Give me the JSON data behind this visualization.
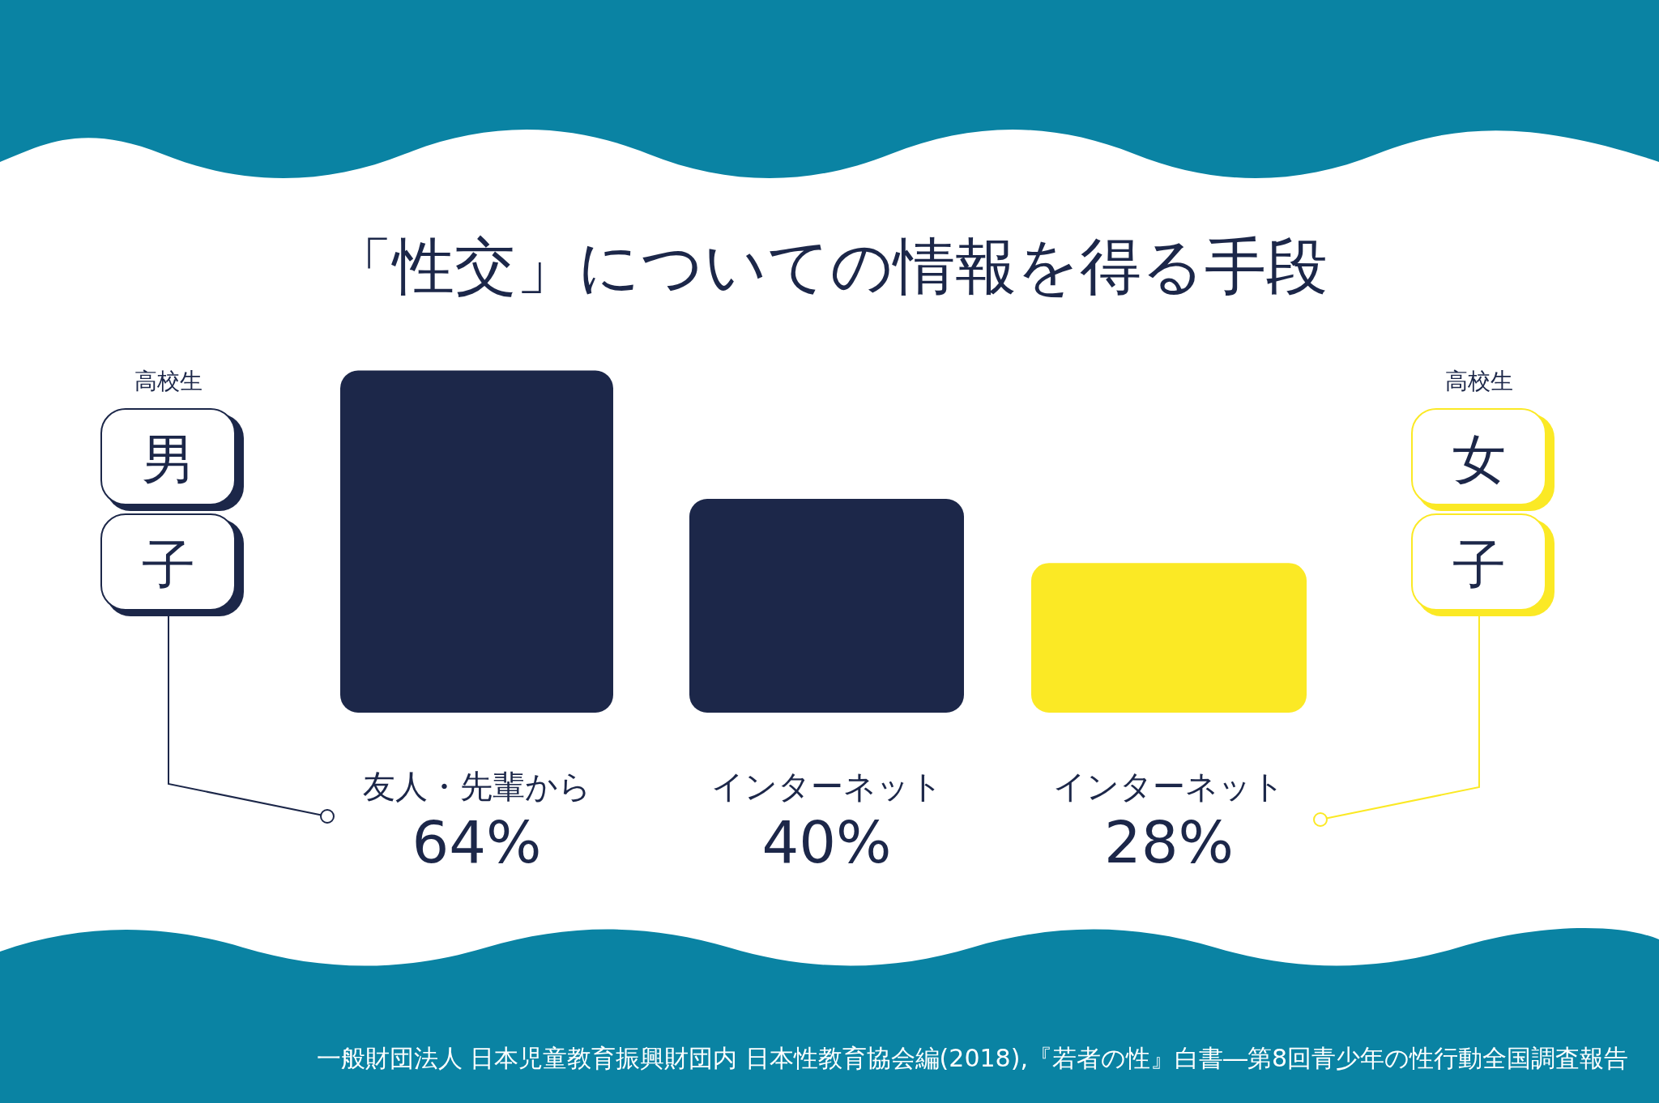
{
  "chart_data": {
    "type": "bar",
    "title": "「性交」についての情報を得る手段",
    "categories": [
      "友人・先輩から",
      "インターネット",
      "インターネット"
    ],
    "values": [
      64,
      40,
      28
    ],
    "colors": [
      "#1c2749",
      "#1c2749",
      "#fbe925"
    ],
    "value_labels": [
      "64%",
      "40%",
      "28%"
    ],
    "annotations": [
      "高校生",
      "男子",
      "高校生",
      "女子",
      "一般財団法人 日本児童教育振興財団内 日本性教育協会編(2018),『若者の性』白書―第8回青少年の性行動全国調査報告"
    ]
  }
}
